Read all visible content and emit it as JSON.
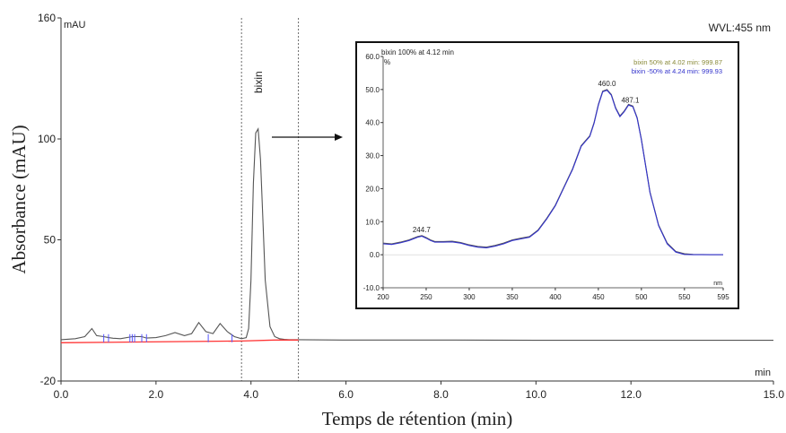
{
  "chart_data": [
    {
      "type": "line",
      "title": "",
      "xlabel": "Temps de rétention (min)",
      "ylabel": "Absorbance (mAU)",
      "x_unit": "min",
      "y_unit": "mAU",
      "corner_label": "WVL:455 nm",
      "xlim": [
        0,
        15
      ],
      "ylim": [
        -20,
        160
      ],
      "x_ticks": [
        "0.0",
        "2.0",
        "4.0",
        "6.0",
        "8.0",
        "10.0",
        "12.0",
        "15.0"
      ],
      "x_tick_values": [
        0,
        2,
        4,
        6,
        8,
        10,
        12,
        15
      ],
      "y_ticks": [
        "160",
        "100",
        "50",
        "-20"
      ],
      "y_tick_values": [
        160,
        100,
        50,
        -20
      ],
      "peak_label": "bixin",
      "integration_window": [
        3.8,
        5.0
      ],
      "series": [
        {
          "color": "#555555",
          "x": [
            0,
            0.3,
            0.5,
            0.65,
            0.75,
            0.9,
            1.0,
            1.1,
            1.25,
            1.5,
            1.7,
            1.8,
            2.0,
            2.2,
            2.4,
            2.6,
            2.75,
            2.9,
            3.05,
            3.2,
            3.35,
            3.5,
            3.65,
            3.8,
            3.9,
            3.95,
            4.0,
            4.05,
            4.1,
            4.15,
            4.2,
            4.25,
            4.3,
            4.4,
            4.5,
            4.6,
            4.7,
            4.8,
            5.0,
            6.0,
            8.0,
            10.0,
            12.0,
            15.0
          ],
          "y": [
            0.5,
            1,
            2,
            6,
            2.5,
            2,
            1.5,
            1.2,
            1,
            2,
            2,
            1.3,
            1.5,
            2.5,
            4,
            2.5,
            3.5,
            9,
            4.5,
            3.5,
            8.5,
            4.5,
            2,
            1,
            1.5,
            6,
            30,
            78,
            103,
            105,
            90,
            60,
            30,
            7,
            2,
            1,
            0.6,
            0.5,
            0.5,
            0.3,
            0.3,
            0.2,
            0.2,
            0.2
          ]
        },
        {
          "color": "#ff3333",
          "x": [
            0,
            3.8,
            4.5,
            5.0
          ],
          "y": [
            -1,
            -0.2,
            0.3,
            0.3
          ]
        }
      ],
      "markers": {
        "color": "#5555ff",
        "x": [
          0.9,
          1.0,
          1.45,
          1.5,
          1.55,
          1.7,
          1.8,
          3.1,
          3.6
        ]
      }
    },
    {
      "type": "line",
      "title": "bixin  100% at 4.12 min",
      "y_unit": "%",
      "x_unit": "nm",
      "xlim": [
        200,
        595
      ],
      "ylim": [
        -10,
        60
      ],
      "x_ticks": [
        "200",
        "250",
        "300",
        "350",
        "400",
        "450",
        "500",
        "550",
        "595"
      ],
      "x_tick_values": [
        200,
        250,
        300,
        350,
        400,
        450,
        500,
        550,
        595
      ],
      "y_ticks": [
        "60.0",
        "50.0",
        "40.0",
        "30.0",
        "20.0",
        "10.0",
        "0.0",
        "-10.0"
      ],
      "y_tick_values": [
        60,
        50,
        40,
        30,
        20,
        10,
        0,
        -10
      ],
      "annotations": [
        {
          "text": "244.7",
          "x": 244.7,
          "y": 5.8
        },
        {
          "text": "460.0",
          "x": 460,
          "y": 50
        },
        {
          "text": "487.1",
          "x": 487.1,
          "y": 45
        }
      ],
      "legend": [
        {
          "text": "bixin 50% at 4.02 min:  999.87",
          "color": "#8a8a3a"
        },
        {
          "text": "bixin -50% at 4.24 min:  999.93",
          "color": "#3333cc"
        }
      ],
      "series": [
        {
          "color": "#555555",
          "x": [
            200,
            210,
            220,
            230,
            240,
            245,
            250,
            255,
            260,
            270,
            280,
            290,
            300,
            310,
            320,
            330,
            340,
            350,
            360,
            370,
            380,
            390,
            400,
            410,
            420,
            430,
            435,
            440,
            445,
            450,
            455,
            460,
            465,
            470,
            475,
            480,
            485,
            490,
            495,
            500,
            505,
            510,
            520,
            530,
            540,
            550,
            560,
            580,
            595
          ],
          "y": [
            3.5,
            3.3,
            3.8,
            4.5,
            5.5,
            5.8,
            5.2,
            4.5,
            4.0,
            4.0,
            4.1,
            3.7,
            3.0,
            2.5,
            2.3,
            2.8,
            3.5,
            4.5,
            5.0,
            5.5,
            7.5,
            11,
            15,
            20.5,
            26,
            33,
            34.5,
            36,
            40,
            45.5,
            49.5,
            50,
            48.5,
            44.5,
            42,
            43.5,
            45.5,
            45,
            41.5,
            35,
            27,
            19,
            9,
            3.5,
            1,
            0.3,
            0.1,
            0,
            0
          ]
        },
        {
          "color": "#3333cc",
          "x": [
            200,
            210,
            220,
            230,
            240,
            245,
            250,
            255,
            260,
            270,
            280,
            290,
            300,
            310,
            320,
            330,
            340,
            350,
            360,
            370,
            380,
            390,
            400,
            410,
            420,
            430,
            435,
            440,
            445,
            450,
            455,
            460,
            465,
            470,
            475,
            480,
            485,
            490,
            495,
            500,
            505,
            510,
            520,
            530,
            540,
            550,
            560,
            580,
            595
          ],
          "y": [
            3.3,
            3.1,
            3.6,
            4.3,
            5.3,
            5.6,
            5.0,
            4.3,
            3.8,
            3.8,
            3.9,
            3.5,
            2.8,
            2.3,
            2.1,
            2.6,
            3.3,
            4.3,
            4.8,
            5.3,
            7.3,
            10.8,
            14.8,
            20.3,
            25.8,
            32.8,
            34.3,
            35.8,
            39.8,
            45.3,
            49.3,
            49.8,
            48.3,
            44.3,
            41.8,
            43.3,
            45.3,
            44.8,
            41.3,
            34.8,
            26.8,
            18.8,
            8.8,
            3.3,
            0.8,
            0.1,
            0,
            0,
            0
          ]
        }
      ]
    }
  ]
}
